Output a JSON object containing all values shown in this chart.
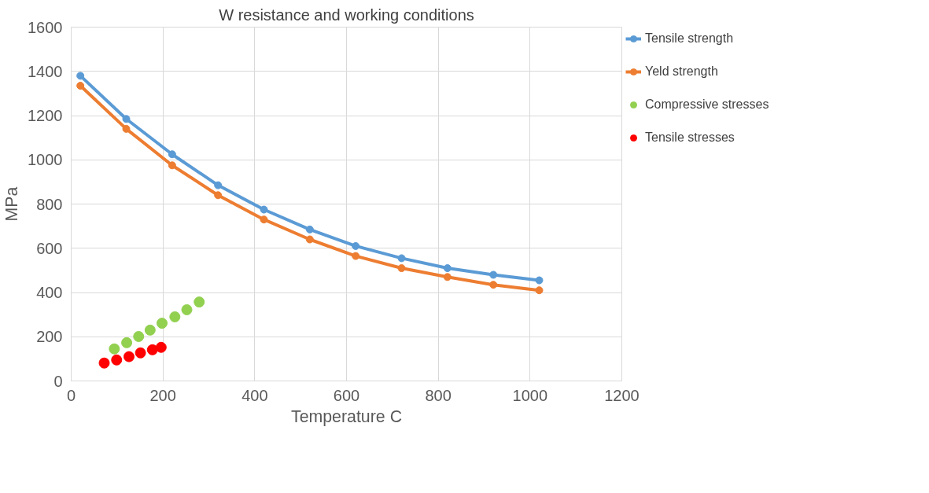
{
  "chart_data": {
    "type": "line",
    "title": "W resistance and working conditions",
    "xlabel": "Temperature C",
    "ylabel": "MPa",
    "xlim": [
      0,
      1200
    ],
    "xticks": [
      0,
      200,
      400,
      600,
      800,
      1000,
      1200
    ],
    "ylim": [
      0,
      1600
    ],
    "yticks": [
      0,
      200,
      400,
      600,
      800,
      1000,
      1200,
      1400,
      1600
    ],
    "grid": true,
    "legend": "right",
    "marker": "circle",
    "series": [
      {
        "name": "Tensile strength",
        "type": "line",
        "color": "#5b9bd5",
        "x": [
          20,
          120,
          220,
          320,
          420,
          520,
          620,
          720,
          820,
          920,
          1020
        ],
        "values": [
          1380,
          1185,
          1025,
          885,
          775,
          685,
          610,
          555,
          510,
          480,
          455
        ]
      },
      {
        "name": "Yeld strength",
        "type": "line",
        "color": "#ed7d31",
        "x": [
          20,
          120,
          220,
          320,
          420,
          520,
          620,
          720,
          820,
          920,
          1020
        ],
        "values": [
          1335,
          1140,
          975,
          840,
          730,
          640,
          565,
          510,
          470,
          435,
          410
        ]
      },
      {
        "name": "Compressive stresses",
        "type": "scatter",
        "color": "#92d050",
        "x": [
          94,
          121,
          147,
          172,
          198,
          226,
          252,
          279
        ],
        "values": [
          145,
          173,
          201,
          230,
          261,
          290,
          322,
          357
        ]
      },
      {
        "name": "Tensile stresses",
        "type": "scatter",
        "color": "#ff0000",
        "x": [
          72,
          99,
          126,
          151,
          177,
          196
        ],
        "values": [
          81,
          95,
          110,
          127,
          141,
          152
        ]
      }
    ]
  }
}
